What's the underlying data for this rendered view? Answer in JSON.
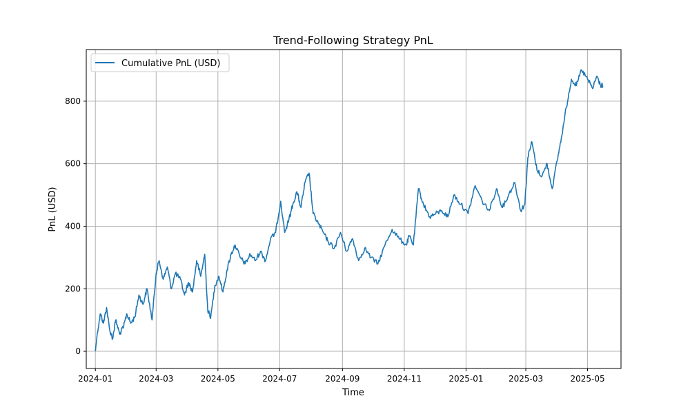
{
  "chart_data": {
    "type": "line",
    "title": "Trend-Following Strategy PnL",
    "xlabel": "Time",
    "ylabel": "PnL (USD)",
    "x_ticks": [
      "2024-01",
      "2024-03",
      "2024-05",
      "2024-07",
      "2024-09",
      "2024-11",
      "2025-01",
      "2025-03",
      "2025-05"
    ],
    "y_ticks": [
      0,
      200,
      400,
      600,
      800
    ],
    "ylim": [
      -55,
      965
    ],
    "xlim": [
      "2023-12-23",
      "2025-06-03"
    ],
    "grid": true,
    "legend_position": "top-left",
    "colors": {
      "series": "#1f77b4",
      "grid": "#b0b0b0"
    },
    "series": [
      {
        "name": "Cumulative PnL (USD)",
        "x": [
          "2024-01-01",
          "2024-01-03",
          "2024-01-06",
          "2024-01-09",
          "2024-01-12",
          "2024-01-15",
          "2024-01-18",
          "2024-01-21",
          "2024-01-25",
          "2024-01-29",
          "2024-02-01",
          "2024-02-05",
          "2024-02-09",
          "2024-02-13",
          "2024-02-17",
          "2024-02-21",
          "2024-02-26",
          "2024-03-01",
          "2024-03-04",
          "2024-03-08",
          "2024-03-12",
          "2024-03-16",
          "2024-03-20",
          "2024-03-25",
          "2024-03-29",
          "2024-04-02",
          "2024-04-06",
          "2024-04-10",
          "2024-04-14",
          "2024-04-18",
          "2024-04-21",
          "2024-04-24",
          "2024-04-28",
          "2024-05-02",
          "2024-05-06",
          "2024-05-10",
          "2024-05-14",
          "2024-05-18",
          "2024-05-23",
          "2024-05-28",
          "2024-06-02",
          "2024-06-07",
          "2024-06-12",
          "2024-06-17",
          "2024-06-22",
          "2024-06-27",
          "2024-07-02",
          "2024-07-06",
          "2024-07-10",
          "2024-07-14",
          "2024-07-18",
          "2024-07-22",
          "2024-07-26",
          "2024-07-30",
          "2024-08-03",
          "2024-08-08",
          "2024-08-13",
          "2024-08-18",
          "2024-08-24",
          "2024-08-30",
          "2024-09-05",
          "2024-09-11",
          "2024-09-17",
          "2024-09-23",
          "2024-09-29",
          "2024-10-06",
          "2024-10-13",
          "2024-10-20",
          "2024-10-27",
          "2024-11-03",
          "2024-11-06",
          "2024-11-10",
          "2024-11-15",
          "2024-11-20",
          "2024-11-26",
          "2024-12-02",
          "2024-12-08",
          "2024-12-14",
          "2024-12-20",
          "2024-12-27",
          "2025-01-03",
          "2025-01-10",
          "2025-01-17",
          "2025-01-24",
          "2025-01-31",
          "2025-02-06",
          "2025-02-12",
          "2025-02-18",
          "2025-02-24",
          "2025-02-28",
          "2025-03-03",
          "2025-03-07",
          "2025-03-12",
          "2025-03-17",
          "2025-03-22",
          "2025-03-27",
          "2025-04-01",
          "2025-04-05",
          "2025-04-10",
          "2025-04-15",
          "2025-04-20",
          "2025-04-25",
          "2025-05-01",
          "2025-05-06",
          "2025-05-10",
          "2025-05-14",
          "2025-05-16"
        ],
        "values": [
          0,
          60,
          120,
          90,
          140,
          70,
          40,
          100,
          55,
          80,
          120,
          90,
          110,
          180,
          150,
          200,
          100,
          250,
          290,
          230,
          270,
          200,
          250,
          230,
          180,
          220,
          190,
          290,
          240,
          310,
          130,
          110,
          210,
          240,
          190,
          260,
          310,
          340,
          300,
          280,
          310,
          290,
          320,
          290,
          360,
          380,
          480,
          380,
          420,
          470,
          510,
          460,
          540,
          570,
          440,
          410,
          380,
          350,
          330,
          380,
          320,
          360,
          290,
          330,
          300,
          280,
          340,
          390,
          360,
          340,
          370,
          340,
          520,
          470,
          430,
          440,
          450,
          430,
          500,
          470,
          440,
          530,
          480,
          450,
          520,
          460,
          500,
          540,
          450,
          470,
          620,
          670,
          580,
          560,
          600,
          520,
          610,
          680,
          780,
          870,
          850,
          900,
          870,
          840,
          880,
          850,
          850
        ]
      }
    ]
  }
}
